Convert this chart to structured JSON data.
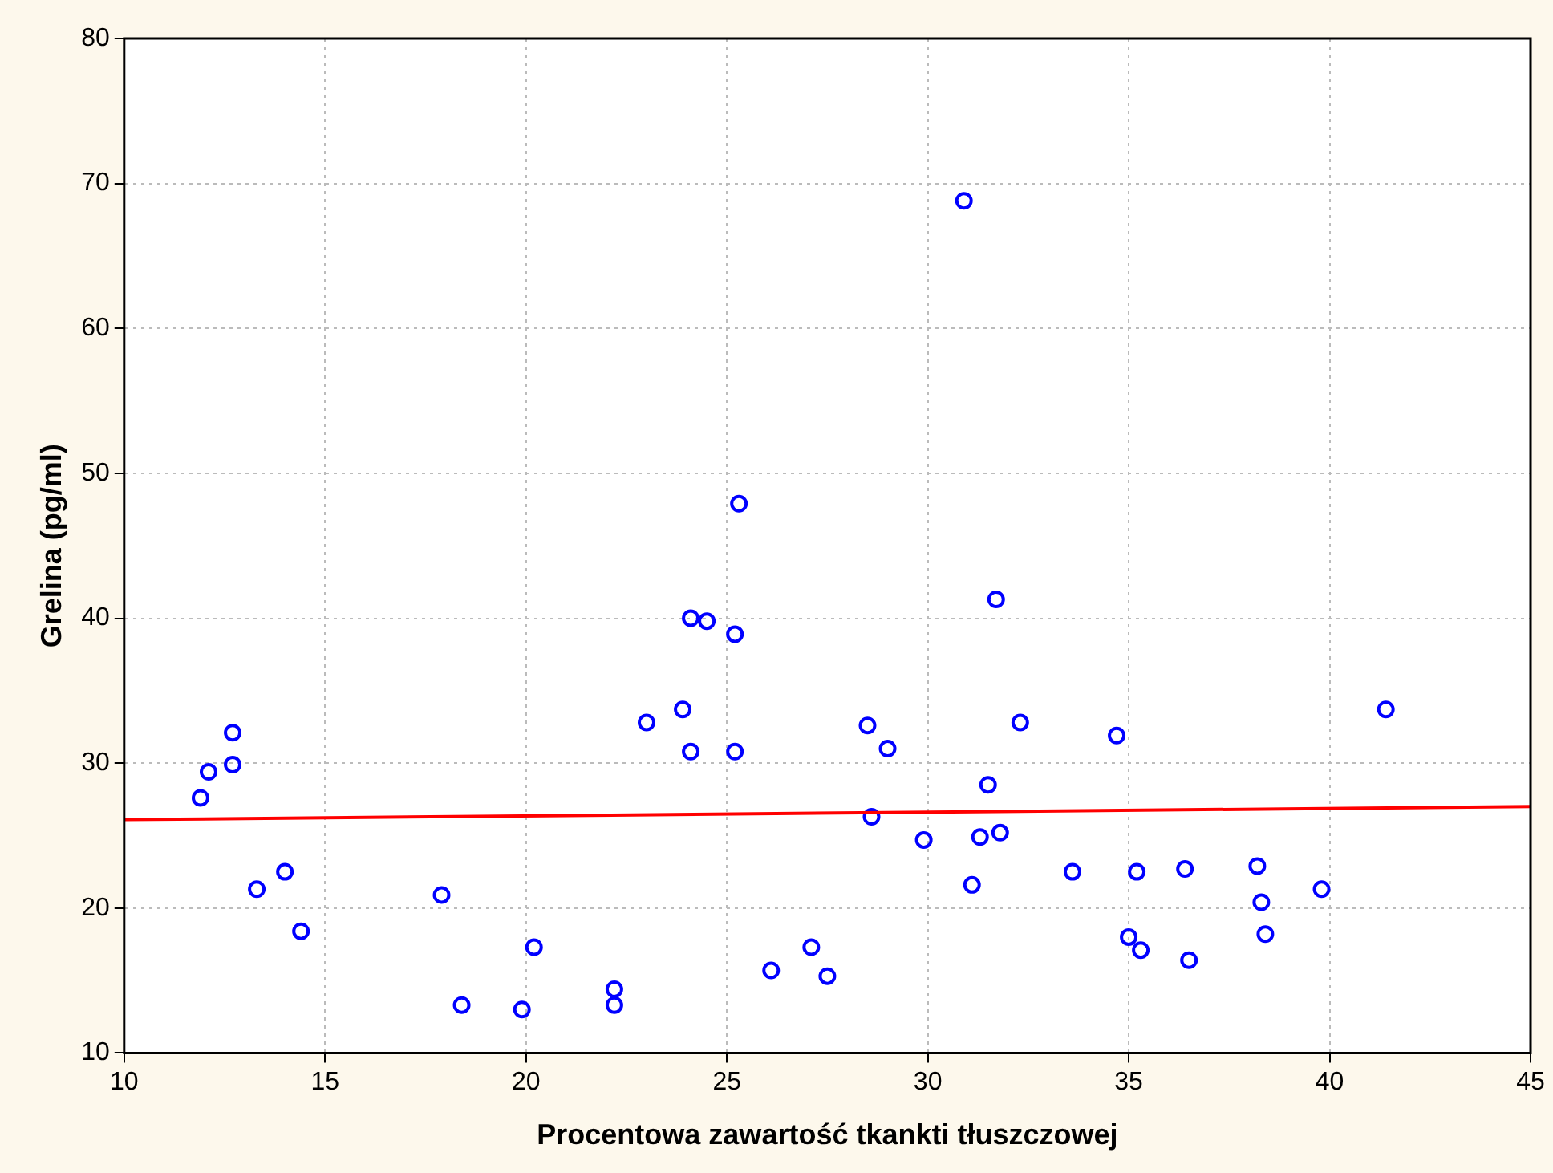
{
  "chart_data": {
    "type": "scatter",
    "xlabel": "Procentowa zawartość tkankti tłuszczowej",
    "ylabel": "Grelina (pg/ml)",
    "xlim": [
      10,
      45
    ],
    "xticks": [
      10,
      15,
      20,
      25,
      30,
      35,
      40,
      45
    ],
    "ylim": [
      10,
      80
    ],
    "yticks": [
      10,
      20,
      30,
      40,
      50,
      60,
      70,
      80
    ],
    "grid": true,
    "legend": false,
    "marker": "circle",
    "series": [
      {
        "type": "scatter",
        "color": "#0000ff",
        "x": [
          11.9,
          12.1,
          12.7,
          12.7,
          13.3,
          14.0,
          14.4,
          17.9,
          18.4,
          20.2,
          19.9,
          22.2,
          22.2,
          23.0,
          23.9,
          24.1,
          24.5,
          24.1,
          25.2,
          25.3,
          25.2,
          26.1,
          27.1,
          27.5,
          28.5,
          28.6,
          29.0,
          29.9,
          30.9,
          31.1,
          31.3,
          31.5,
          31.7,
          31.8,
          32.3,
          33.6,
          34.7,
          35.0,
          35.2,
          35.3,
          36.4,
          36.5,
          38.2,
          38.3,
          38.4,
          39.8,
          41.4
        ],
        "values": [
          27.6,
          29.4,
          32.1,
          29.9,
          21.3,
          22.5,
          18.4,
          20.9,
          13.3,
          17.3,
          13.0,
          14.4,
          13.3,
          32.8,
          33.7,
          40.0,
          39.8,
          30.8,
          38.9,
          47.9,
          30.8,
          15.7,
          17.3,
          15.3,
          32.6,
          26.3,
          31.0,
          24.7,
          68.8,
          21.6,
          24.9,
          28.5,
          41.3,
          25.2,
          32.8,
          22.5,
          31.9,
          18.0,
          22.5,
          17.1,
          22.7,
          16.4,
          22.9,
          20.4,
          18.2,
          21.3,
          33.7
        ]
      },
      {
        "type": "line",
        "color": "#ff0000",
        "x": [
          10,
          45
        ],
        "values": [
          26.1,
          27.0
        ],
        "marker": "none"
      }
    ]
  }
}
